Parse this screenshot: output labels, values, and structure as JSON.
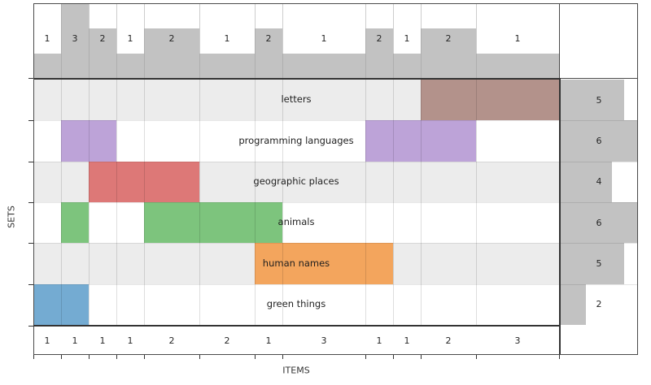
{
  "chart_data": {
    "type": "supervenn",
    "xlabel": "ITEMS",
    "ylabel": "SETS",
    "n_items_total": 19,
    "n_columns": 12,
    "column_chunk_sizes": [
      1,
      1,
      1,
      1,
      2,
      2,
      1,
      3,
      1,
      1,
      2,
      3
    ],
    "column_set_counts": [
      1,
      3,
      2,
      1,
      2,
      1,
      2,
      1,
      2,
      1,
      2,
      1
    ],
    "top_axis_max": 3,
    "right_axis_max": 6,
    "sets": [
      {
        "label": "letters",
        "size": 5,
        "color": "#b3928b",
        "columns": [
          10,
          11
        ]
      },
      {
        "label": "programming languages",
        "size": 6,
        "color": "#bda3d8",
        "columns": [
          1,
          2,
          8,
          9,
          10
        ]
      },
      {
        "label": "geographic places",
        "size": 4,
        "color": "#dd7877",
        "columns": [
          2,
          3,
          4
        ]
      },
      {
        "label": "animals",
        "size": 6,
        "color": "#7dc47d",
        "columns": [
          1,
          4,
          5,
          6
        ]
      },
      {
        "label": "human names",
        "size": 5,
        "color": "#f3a55d",
        "columns": [
          6,
          7,
          8
        ]
      },
      {
        "label": "green things",
        "size": 2,
        "color": "#74abd2",
        "columns": [
          0,
          1
        ]
      }
    ],
    "colors": {
      "bar_gray": "#c2c2c2",
      "row_stripe": "#ececec",
      "row_plain": "#ffffff",
      "thick_border": "#333333",
      "spine": "#4a4a4a",
      "tick": "#333333",
      "text": "#262626"
    }
  }
}
